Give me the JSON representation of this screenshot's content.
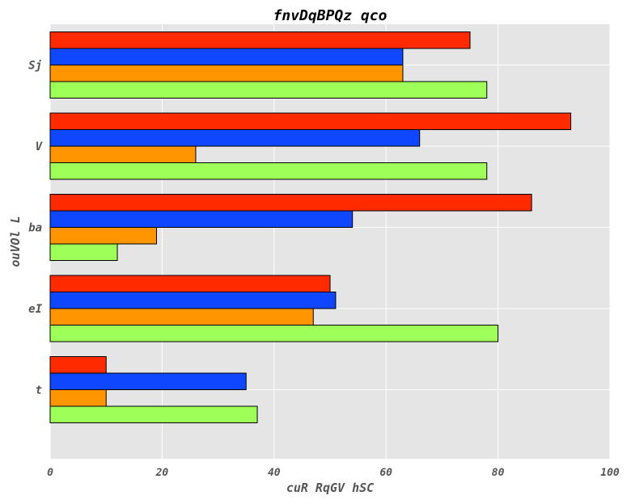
{
  "chart_data": {
    "type": "bar",
    "orientation": "horizontal",
    "title": "fnvDqBPQz  qco",
    "xlabel": "cuR  RqGV hSC",
    "ylabel": "ouVOl L",
    "xlim": [
      0,
      100
    ],
    "xticks": [
      0,
      20,
      40,
      60,
      80,
      100
    ],
    "grid": true,
    "categories": [
      "Sj",
      "V",
      "ba",
      "eI",
      "t"
    ],
    "series": [
      {
        "color": "#ff2a00",
        "values": [
          75,
          93,
          86,
          50,
          10
        ]
      },
      {
        "color": "#0f47ff",
        "values": [
          63,
          66,
          54,
          51,
          35
        ]
      },
      {
        "color": "#ff9500",
        "values": [
          63,
          26,
          19,
          47,
          10
        ]
      },
      {
        "color": "#9dff57",
        "values": [
          78,
          78,
          12,
          80,
          37
        ]
      }
    ]
  }
}
